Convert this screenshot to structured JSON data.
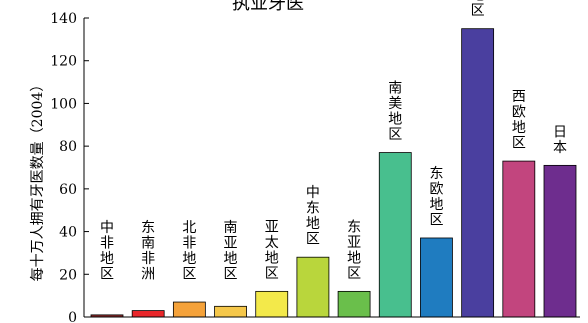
{
  "chart_data": {
    "type": "bar",
    "title": "执业牙医",
    "ylabel": "每十万人拥有牙医数量（2004）",
    "xlabel": "",
    "ylim": [
      0,
      140
    ],
    "yticks": [
      0,
      20,
      40,
      60,
      80,
      100,
      120,
      140
    ],
    "grid": false,
    "legend": "none",
    "categories": [
      "中非地区",
      "东南非洲",
      "北非地区",
      "南亚地区",
      "亚太地区",
      "中东地区",
      "东亚地区",
      "南美地区",
      "东欧地区",
      "北美地区",
      "西欧地区",
      "日本"
    ],
    "values": [
      1,
      3,
      7,
      5,
      12,
      28,
      12,
      77,
      37,
      135,
      73,
      71
    ],
    "colors": [
      "#8b2a2a",
      "#e8262a",
      "#f5a23a",
      "#f5c74a",
      "#f3e94a",
      "#b9d63c",
      "#6abf4b",
      "#48bf8e",
      "#1f7cc0",
      "#4a3f9f",
      "#c2457e",
      "#6e2d8e"
    ]
  }
}
